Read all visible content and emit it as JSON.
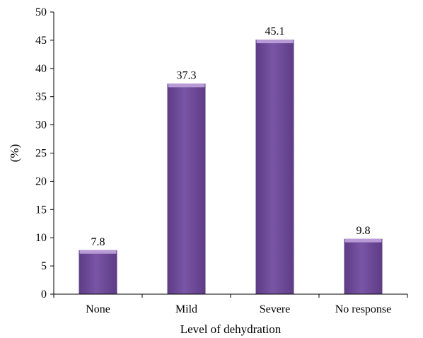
{
  "chart_data": {
    "type": "bar",
    "categories": [
      "None",
      "Mild",
      "Severe",
      "No response"
    ],
    "values": [
      7.8,
      37.3,
      45.1,
      9.8
    ],
    "data_labels": [
      "7.8",
      "37.3",
      "45.1",
      "9.8"
    ],
    "title": "",
    "xlabel": "Level of dehydration",
    "ylabel": "(%)",
    "ylim": [
      0,
      50
    ],
    "yticks": [
      0,
      5,
      10,
      15,
      20,
      25,
      30,
      35,
      40,
      45,
      50
    ],
    "ytick_labels": [
      "0",
      "5",
      "10",
      "15",
      "20",
      "25",
      "30",
      "35",
      "40",
      "45",
      "50"
    ],
    "grid": false,
    "legend": "none",
    "colors": {
      "bar": "#7a55a6",
      "bar_dark": "#5d3c85",
      "bar_top": "#b89ad6",
      "axis": "#000000"
    }
  }
}
